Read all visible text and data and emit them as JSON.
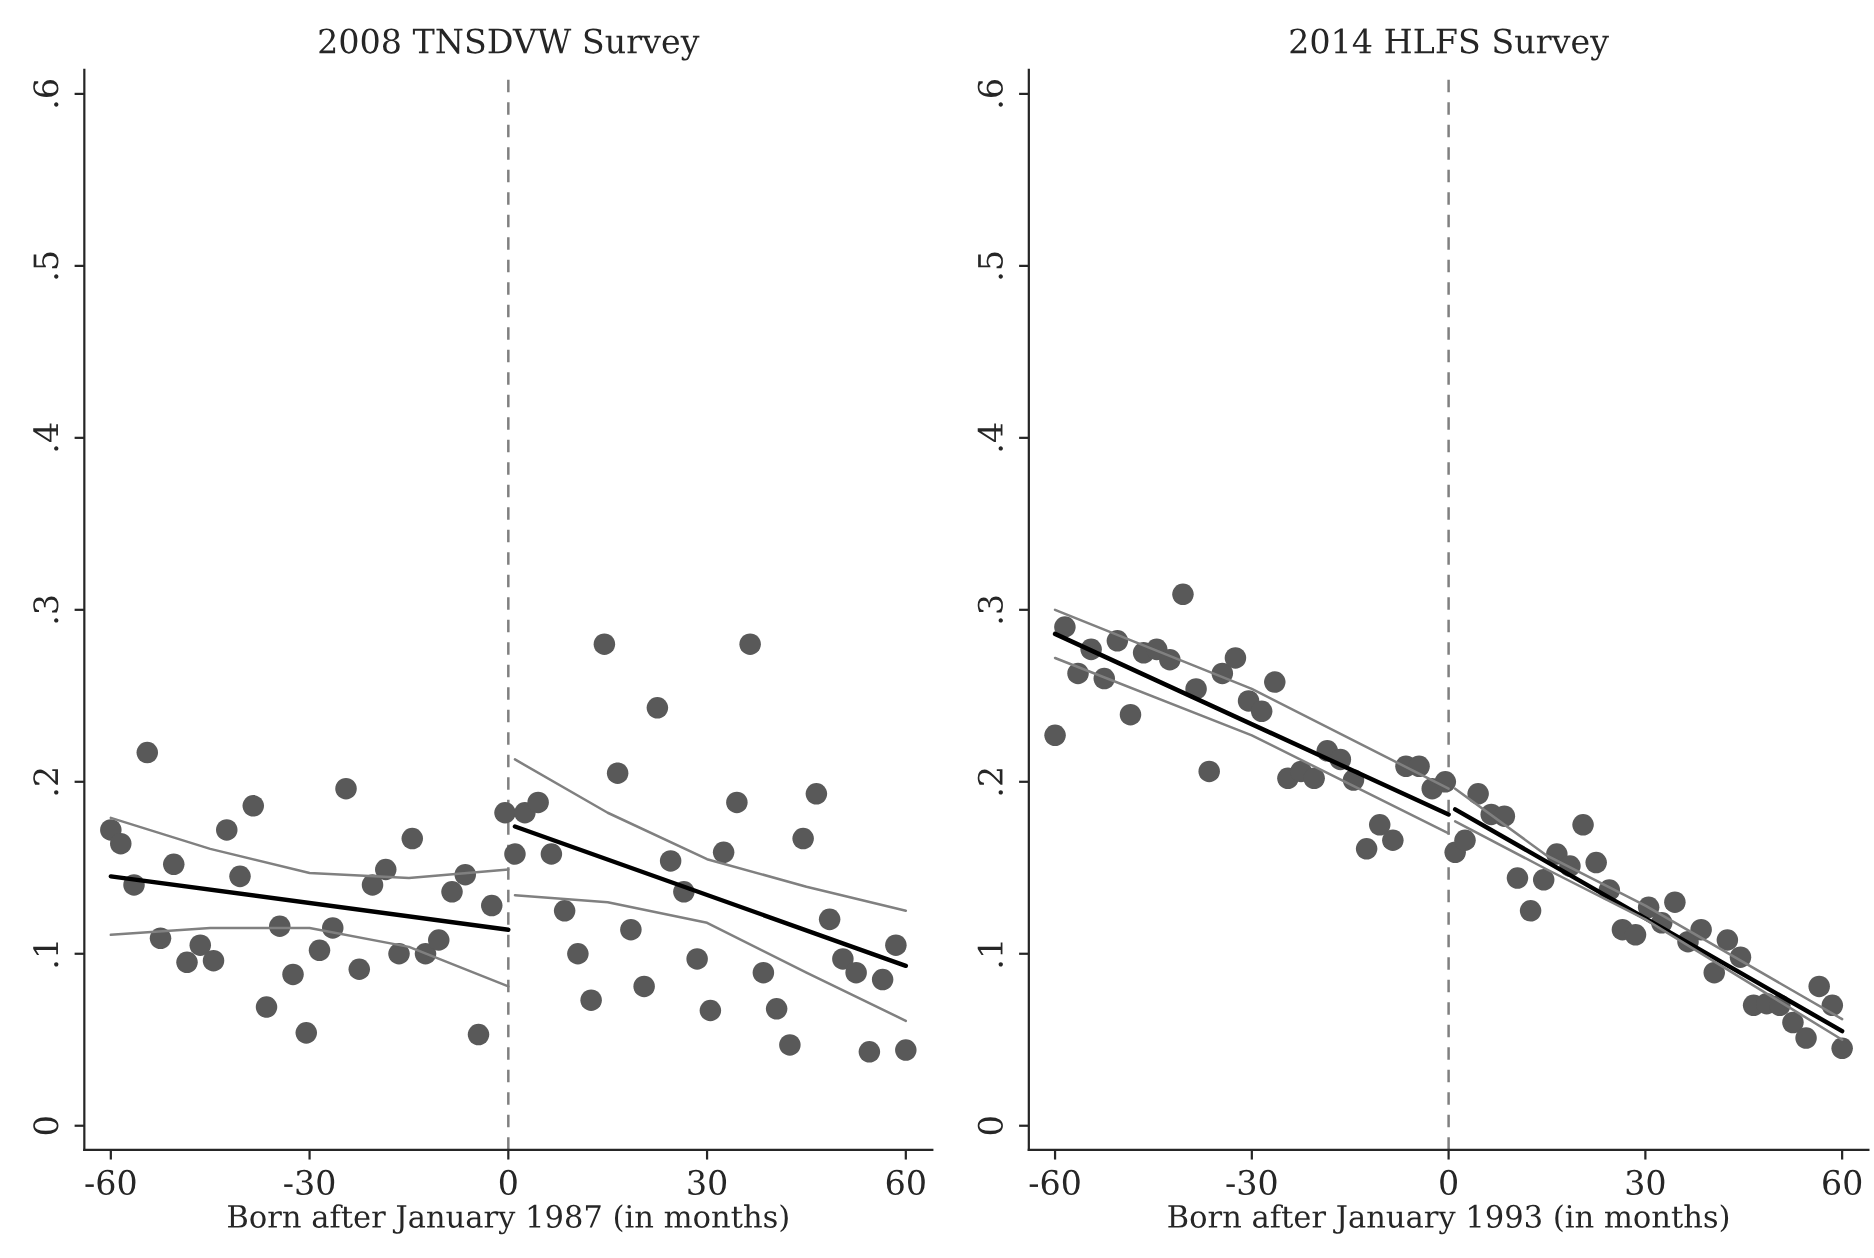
{
  "chart_data": [
    {
      "type": "scatter",
      "title": "2008 TNSDVW Survey",
      "xlabel": "Born after January 1987 (in months)",
      "xlim": [
        -64,
        64
      ],
      "xticks": [
        -60,
        -30,
        0,
        30,
        60
      ],
      "ylim": [
        -0.014,
        0.614
      ],
      "yticks": [
        {
          "value": 0,
          "label": "0"
        },
        {
          "value": 0.1,
          "label": ".1"
        },
        {
          "value": 0.2,
          "label": ".2"
        },
        {
          "value": 0.3,
          "label": ".3"
        },
        {
          "value": 0.4,
          "label": ".4"
        },
        {
          "value": 0.5,
          "label": ".5"
        },
        {
          "value": 0.6,
          "label": ".6"
        }
      ],
      "grid": false,
      "legend": false,
      "ref_lines": [
        {
          "axis": "x",
          "value": 0,
          "color": "#808080",
          "line_style": "dashed"
        }
      ],
      "series": [
        {
          "marker": "circle",
          "color": "#595959",
          "x": [
            -60,
            -58.5,
            -56.5,
            -54.5,
            -52.5,
            -50.5,
            -48.5,
            -46.5,
            -44.5,
            -42.5,
            -40.5,
            -38.5,
            -36.5,
            -34.5,
            -32.5,
            -30.5,
            -28.5,
            -26.5,
            -24.5,
            -22.5,
            -20.5,
            -18.5,
            -16.5,
            -14.5,
            -12.5,
            -10.5,
            -8.5,
            -6.5,
            -4.5,
            -2.5,
            -0.5,
            1,
            2.5,
            4.5,
            6.5,
            8.5,
            10.5,
            12.5,
            14.5,
            16.5,
            18.5,
            20.5,
            22.5,
            24.5,
            26.5,
            28.5,
            30.5,
            32.5,
            34.5,
            36.5,
            38.5,
            40.5,
            42.5,
            44.5,
            46.5,
            48.5,
            50.5,
            52.5,
            54.5,
            56.5,
            58.5,
            60
          ],
          "values": [
            0.172,
            0.164,
            0.14,
            0.217,
            0.109,
            0.152,
            0.095,
            0.105,
            0.096,
            0.172,
            0.145,
            0.186,
            0.069,
            0.116,
            0.088,
            0.054,
            0.102,
            0.115,
            0.196,
            0.091,
            0.14,
            0.149,
            0.1,
            0.167,
            0.1,
            0.108,
            0.136,
            0.146,
            0.053,
            0.128,
            0.182,
            0.158,
            0.182,
            0.188,
            0.158,
            0.125,
            0.1,
            0.073,
            0.28,
            0.205,
            0.114,
            0.081,
            0.243,
            0.154,
            0.136,
            0.097,
            0.067,
            0.159,
            0.188,
            0.28,
            0.089,
            0.068,
            0.047,
            0.167,
            0.193,
            0.12,
            0.097,
            0.089,
            0.043,
            0.085,
            0.105,
            0.044
          ]
        },
        {
          "type": "line",
          "marker": "none",
          "color": "#000000",
          "x": [
            -60,
            0
          ],
          "values": [
            0.145,
            0.114
          ]
        },
        {
          "type": "line",
          "marker": "none",
          "color": "#000000",
          "x": [
            1,
            60
          ],
          "values": [
            0.174,
            0.093
          ]
        },
        {
          "type": "line",
          "marker": "none",
          "color": "#808080",
          "x": [
            -60,
            -45,
            -30,
            -15,
            0
          ],
          "values": [
            0.179,
            0.161,
            0.147,
            0.144,
            0.149
          ]
        },
        {
          "type": "line",
          "marker": "none",
          "color": "#808080",
          "x": [
            -60,
            -45,
            -30,
            -15,
            0
          ],
          "values": [
            0.111,
            0.115,
            0.115,
            0.104,
            0.081
          ]
        },
        {
          "type": "line",
          "marker": "none",
          "color": "#808080",
          "x": [
            1,
            15,
            30,
            45,
            60
          ],
          "values": [
            0.213,
            0.182,
            0.155,
            0.139,
            0.125
          ]
        },
        {
          "type": "line",
          "marker": "none",
          "color": "#808080",
          "x": [
            1,
            15,
            30,
            45,
            60
          ],
          "values": [
            0.134,
            0.13,
            0.118,
            0.089,
            0.061
          ]
        }
      ]
    },
    {
      "type": "scatter",
      "title": "2014 HLFS Survey",
      "xlabel": "Born after January 1993 (in months)",
      "xlim": [
        -64,
        64
      ],
      "xticks": [
        -60,
        -30,
        0,
        30,
        60
      ],
      "ylim": [
        -0.014,
        0.614
      ],
      "yticks": [
        {
          "value": 0,
          "label": "0"
        },
        {
          "value": 0.1,
          "label": ".1"
        },
        {
          "value": 0.2,
          "label": ".2"
        },
        {
          "value": 0.3,
          "label": ".3"
        },
        {
          "value": 0.4,
          "label": ".4"
        },
        {
          "value": 0.5,
          "label": ".5"
        },
        {
          "value": 0.6,
          "label": ".6"
        }
      ],
      "grid": false,
      "legend": false,
      "ref_lines": [
        {
          "axis": "x",
          "value": 0,
          "color": "#808080",
          "line_style": "dashed"
        }
      ],
      "series": [
        {
          "marker": "circle",
          "color": "#595959",
          "x": [
            -60,
            -58.5,
            -56.5,
            -54.5,
            -52.5,
            -50.5,
            -48.5,
            -46.5,
            -44.5,
            -42.5,
            -40.5,
            -38.5,
            -36.5,
            -34.5,
            -32.5,
            -30.5,
            -28.5,
            -26.5,
            -24.5,
            -22.5,
            -20.5,
            -18.5,
            -16.5,
            -14.5,
            -12.5,
            -10.5,
            -8.5,
            -6.5,
            -4.5,
            -2.5,
            -0.5,
            1,
            2.5,
            4.5,
            6.5,
            8.5,
            10.5,
            12.5,
            14.5,
            16.5,
            18.5,
            20.5,
            22.5,
            24.5,
            26.5,
            28.5,
            30.5,
            32.5,
            34.5,
            36.5,
            38.5,
            40.5,
            42.5,
            44.5,
            46.5,
            48.5,
            50.5,
            52.5,
            54.5,
            56.5,
            58.5,
            60
          ],
          "values": [
            0.227,
            0.29,
            0.263,
            0.277,
            0.26,
            0.282,
            0.239,
            0.275,
            0.277,
            0.271,
            0.309,
            0.254,
            0.206,
            0.263,
            0.272,
            0.247,
            0.241,
            0.258,
            0.202,
            0.206,
            0.202,
            0.218,
            0.213,
            0.201,
            0.161,
            0.175,
            0.166,
            0.209,
            0.209,
            0.196,
            0.2,
            0.159,
            0.166,
            0.193,
            0.181,
            0.18,
            0.144,
            0.125,
            0.143,
            0.158,
            0.151,
            0.175,
            0.153,
            0.137,
            0.114,
            0.111,
            0.127,
            0.118,
            0.13,
            0.107,
            0.114,
            0.089,
            0.108,
            0.098,
            0.07,
            0.071,
            0.07,
            0.06,
            0.051,
            0.081,
            0.07,
            0.045
          ]
        },
        {
          "type": "line",
          "marker": "none",
          "color": "#000000",
          "x": [
            -60,
            0
          ],
          "values": [
            0.286,
            0.181
          ]
        },
        {
          "type": "line",
          "marker": "none",
          "color": "#000000",
          "x": [
            1,
            60
          ],
          "values": [
            0.184,
            0.055
          ]
        },
        {
          "type": "line",
          "marker": "none",
          "color": "#808080",
          "x": [
            -60,
            -30,
            0
          ],
          "values": [
            0.3,
            0.254,
            0.196
          ]
        },
        {
          "type": "line",
          "marker": "none",
          "color": "#808080",
          "x": [
            -60,
            -30,
            0
          ],
          "values": [
            0.272,
            0.227,
            0.17
          ]
        },
        {
          "type": "line",
          "marker": "none",
          "color": "#808080",
          "x": [
            1,
            15,
            30,
            60
          ],
          "values": [
            0.196,
            0.157,
            0.128,
            0.062
          ]
        },
        {
          "type": "line",
          "marker": "none",
          "color": "#808080",
          "x": [
            1,
            15,
            30,
            60
          ],
          "values": [
            0.177,
            0.149,
            0.12,
            0.05
          ]
        }
      ]
    }
  ]
}
